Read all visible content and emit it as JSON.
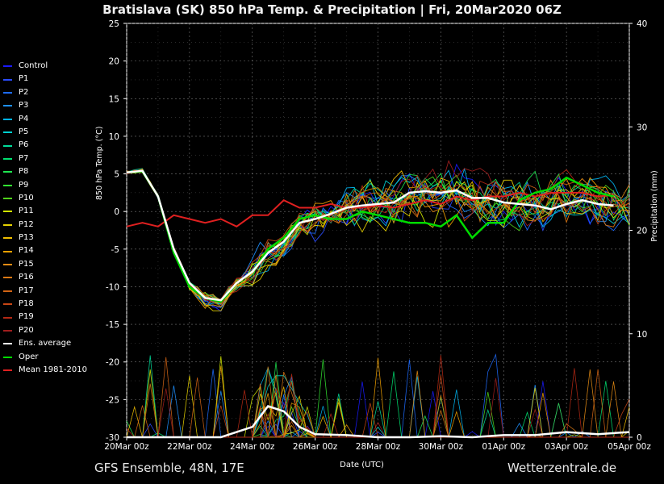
{
  "chart_data": {
    "type": "line",
    "title": "Bratislava  (SK)  850 hPa Temp. & Precipitation | Fri, 20Mar2020 06Z",
    "xlabel": "Date (UTC)",
    "ylabel": "850 hPa Temp. (°C)",
    "y2label": "Precipitation (mm)",
    "xticks": [
      "20Mar 00z",
      "22Mar 00z",
      "24Mar 00z",
      "26Mar 00z",
      "28Mar 00z",
      "30Mar 00z",
      "01Apr 00z",
      "03Apr 00z",
      "05Apr 00z"
    ],
    "yticks": [
      "25",
      "20",
      "15",
      "10",
      "5",
      "0",
      "-5",
      "-10",
      "-15",
      "-20",
      "-25",
      "-30"
    ],
    "y2ticks": [
      "40",
      "30",
      "20",
      "10",
      "0"
    ],
    "ylim": [
      -30,
      25
    ],
    "y2lim": [
      0,
      40
    ],
    "xlim_days": [
      0,
      16
    ],
    "grid": true,
    "legend_position": "left",
    "series": [
      {
        "name": "Control",
        "color": "#1a1aff"
      },
      {
        "name": "P1",
        "color": "#2a4cff"
      },
      {
        "name": "P2",
        "color": "#1e6cff"
      },
      {
        "name": "P3",
        "color": "#1e90ff"
      },
      {
        "name": "P4",
        "color": "#00b4f0"
      },
      {
        "name": "P5",
        "color": "#00d2d2"
      },
      {
        "name": "P6",
        "color": "#00dc9a"
      },
      {
        "name": "P7",
        "color": "#00e070"
      },
      {
        "name": "P8",
        "color": "#1ee650"
      },
      {
        "name": "P9",
        "color": "#32e632"
      },
      {
        "name": "P10",
        "color": "#50d21a"
      },
      {
        "name": "P11",
        "color": "#d2e600"
      },
      {
        "name": "P12",
        "color": "#e6d200"
      },
      {
        "name": "P13",
        "color": "#f0be00"
      },
      {
        "name": "P14",
        "color": "#f0a000"
      },
      {
        "name": "P15",
        "color": "#e68c14"
      },
      {
        "name": "P16",
        "color": "#dc7814"
      },
      {
        "name": "P17",
        "color": "#d26414"
      },
      {
        "name": "P18",
        "color": "#c84614"
      },
      {
        "name": "P19",
        "color": "#b42814"
      },
      {
        "name": "P20",
        "color": "#a01e1e"
      },
      {
        "name": "Ens. average",
        "color": "#ffffff"
      },
      {
        "name": "Oper",
        "color": "#00dc00"
      },
      {
        "name": "Mean 1981-2010",
        "color": "#e02020"
      }
    ],
    "ens_average_temp": [
      [
        0,
        5.2
      ],
      [
        0.5,
        5.4
      ],
      [
        1,
        2
      ],
      [
        1.5,
        -5
      ],
      [
        2,
        -9.5
      ],
      [
        2.5,
        -11.5
      ],
      [
        3,
        -11.8
      ],
      [
        3.5,
        -9.5
      ],
      [
        4,
        -8
      ],
      [
        4.5,
        -5.5
      ],
      [
        5,
        -4
      ],
      [
        5.5,
        -1.5
      ],
      [
        6,
        -1
      ],
      [
        6.5,
        -0.3
      ],
      [
        7,
        0.5
      ],
      [
        7.5,
        0.8
      ],
      [
        8,
        1
      ],
      [
        8.5,
        1.2
      ],
      [
        9,
        2.5
      ],
      [
        9.5,
        2.7
      ],
      [
        10,
        2.5
      ],
      [
        10.5,
        2.8
      ],
      [
        11,
        1.8
      ],
      [
        11.5,
        1.8
      ],
      [
        12,
        1.2
      ],
      [
        12.5,
        1
      ],
      [
        13,
        0.8
      ],
      [
        13.5,
        0.3
      ],
      [
        14,
        1
      ],
      [
        14.5,
        1.5
      ],
      [
        15,
        1
      ],
      [
        15.5,
        0.8
      ]
    ],
    "oper_temp": [
      [
        0,
        5.2
      ],
      [
        0.5,
        5.3
      ],
      [
        1,
        2
      ],
      [
        1.5,
        -5.5
      ],
      [
        2,
        -10
      ],
      [
        2.5,
        -11.5
      ],
      [
        3,
        -12
      ],
      [
        3.5,
        -9.5
      ],
      [
        4,
        -8
      ],
      [
        4.5,
        -5
      ],
      [
        5,
        -3.5
      ],
      [
        5.5,
        -1
      ],
      [
        6,
        -0.5
      ],
      [
        6.5,
        -1
      ],
      [
        7,
        -1
      ],
      [
        7.5,
        0
      ],
      [
        8,
        -0.5
      ],
      [
        8.5,
        -1
      ],
      [
        9,
        -1.5
      ],
      [
        9.5,
        -1.5
      ],
      [
        10,
        -2
      ],
      [
        10.5,
        -0.5
      ],
      [
        11,
        -3.5
      ],
      [
        11.5,
        -1.5
      ],
      [
        12,
        -1.5
      ],
      [
        12.5,
        1.5
      ],
      [
        13,
        2.5
      ],
      [
        13.5,
        3
      ],
      [
        14,
        4.5
      ],
      [
        14.5,
        3.5
      ],
      [
        15,
        2.5
      ],
      [
        15.5,
        2
      ]
    ],
    "mean_1981_2010_temp": [
      [
        0,
        -2
      ],
      [
        0.5,
        -1.5
      ],
      [
        1,
        -2
      ],
      [
        1.5,
        -0.5
      ],
      [
        2,
        -1
      ],
      [
        2.5,
        -1.5
      ],
      [
        3,
        -1
      ],
      [
        3.5,
        -2
      ],
      [
        4,
        -0.5
      ],
      [
        4.5,
        -0.5
      ],
      [
        5,
        1.5
      ],
      [
        5.5,
        0.5
      ],
      [
        6,
        0.5
      ],
      [
        6.5,
        1
      ],
      [
        7,
        0.5
      ],
      [
        7.5,
        0.5
      ],
      [
        8,
        0.8
      ],
      [
        8.5,
        0.5
      ],
      [
        9,
        1
      ],
      [
        9.5,
        1.5
      ],
      [
        10,
        1
      ],
      [
        10.5,
        2
      ],
      [
        11,
        1.5
      ],
      [
        11.5,
        2
      ],
      [
        12,
        2
      ],
      [
        12.5,
        2.5
      ],
      [
        13,
        2
      ],
      [
        13.5,
        2.5
      ],
      [
        14,
        2.5
      ],
      [
        14.5,
        2.5
      ],
      [
        15,
        2
      ],
      [
        15.5,
        2.2
      ]
    ],
    "ens_average_precip_mm": [
      [
        0,
        0
      ],
      [
        2,
        0
      ],
      [
        3,
        0
      ],
      [
        3.5,
        0.5
      ],
      [
        4,
        1
      ],
      [
        4.5,
        3
      ],
      [
        5,
        2.5
      ],
      [
        5.5,
        1
      ],
      [
        6,
        0.3
      ],
      [
        7,
        0.2
      ],
      [
        8,
        0
      ],
      [
        9,
        0
      ],
      [
        10,
        0.1
      ],
      [
        11,
        0
      ],
      [
        12,
        0.2
      ],
      [
        13,
        0.2
      ],
      [
        14,
        0.5
      ],
      [
        15,
        0.3
      ],
      [
        16,
        0.5
      ]
    ]
  },
  "legend": {
    "items": [
      "Control",
      "P1",
      "P2",
      "P3",
      "P4",
      "P5",
      "P6",
      "P7",
      "P8",
      "P9",
      "P10",
      "P11",
      "P12",
      "P13",
      "P14",
      "P15",
      "P16",
      "P17",
      "P18",
      "P19",
      "P20",
      "Ens. average",
      "Oper",
      "Mean 1981-2010"
    ]
  },
  "footer": {
    "left": "GFS Ensemble, 48N, 17E",
    "right": "Wetterzentrale.de"
  }
}
